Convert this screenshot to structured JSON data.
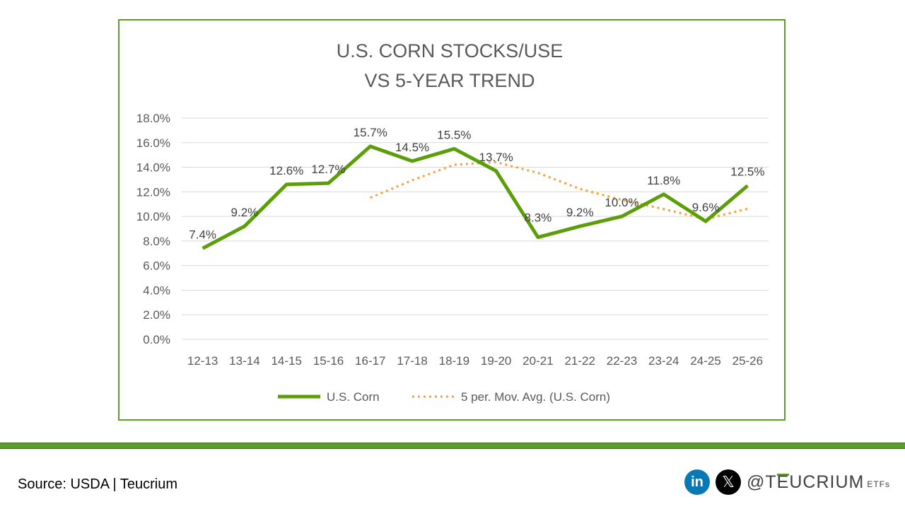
{
  "chart_data": {
    "type": "line",
    "title": [
      "U.S. CORN STOCKS/USE",
      "VS 5-YEAR TREND"
    ],
    "categories": [
      "12-13",
      "13-14",
      "14-15",
      "15-16",
      "16-17",
      "17-18",
      "18-19",
      "19-20",
      "20-21",
      "21-22",
      "22-23",
      "23-24",
      "24-25",
      "25-26"
    ],
    "series": [
      {
        "name": "U.S. Corn",
        "color": "#5c9e0a",
        "style": "solid",
        "values": [
          7.4,
          9.2,
          12.6,
          12.7,
          15.7,
          14.5,
          15.5,
          13.7,
          8.3,
          9.2,
          10.0,
          11.8,
          9.6,
          12.5
        ],
        "labels": [
          "7.4%",
          "9.2%",
          "12.6%",
          "12.7%",
          "15.7%",
          "14.5%",
          "15.5%",
          "13.7%",
          "8.3%",
          "9.2%",
          "10.0%",
          "11.8%",
          "9.6%",
          "12.5%"
        ]
      },
      {
        "name": "5 per. Mov. Avg. (U.S. Corn)",
        "color": "#f5a03c",
        "style": "dotted",
        "values": [
          null,
          null,
          null,
          null,
          11.52,
          12.94,
          14.2,
          14.42,
          13.54,
          12.24,
          11.34,
          10.6,
          9.78,
          10.62
        ]
      }
    ],
    "yticks": [
      "0.0%",
      "2.0%",
      "4.0%",
      "6.0%",
      "8.0%",
      "10.0%",
      "12.0%",
      "14.0%",
      "16.0%",
      "18.0%"
    ],
    "ylim": [
      0,
      18
    ],
    "grid": true,
    "legend": "bottom"
  },
  "footer": {
    "source": "Source: USDA | Teucrium",
    "linkedin_icon": "linkedin-icon",
    "x_icon": "x-icon",
    "handle_at": "@T",
    "handle_e": "E",
    "handle_rest": "UCRIUM",
    "etfs": "ETFs",
    "brand_color": "#5c9e2e"
  }
}
